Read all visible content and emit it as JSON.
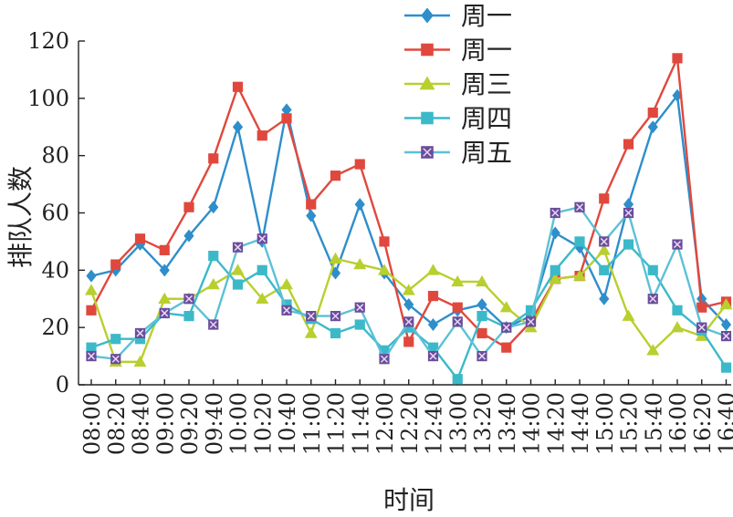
{
  "chart_data": {
    "type": "line",
    "title": "",
    "xlabel": "时间",
    "ylabel": "排队人数",
    "ylim": [
      0,
      120
    ],
    "yticks": [
      0,
      20,
      40,
      60,
      80,
      100,
      120
    ],
    "grid": false,
    "legend_position": "top-center",
    "categories": [
      "08:00",
      "08:20",
      "08:40",
      "09:00",
      "09:20",
      "09:40",
      "10:00",
      "10:20",
      "10:40",
      "11:00",
      "11:20",
      "11:40",
      "12:00",
      "12:20",
      "12:40",
      "13:00",
      "13:20",
      "13:40",
      "14:00",
      "14:20",
      "14:40",
      "15:00",
      "15:20",
      "15:40",
      "16:00",
      "16:20",
      "16:40"
    ],
    "series": [
      {
        "name": "周一",
        "color": "#2e8ecb",
        "marker": "diamond",
        "values": [
          38,
          40,
          49,
          40,
          52,
          62,
          90,
          50,
          96,
          59,
          39,
          63,
          39,
          28,
          21,
          26,
          28,
          20,
          24,
          53,
          48,
          30,
          63,
          90,
          101,
          30,
          21
        ]
      },
      {
        "name": "周一",
        "color": "#e0483d",
        "marker": "square",
        "values": [
          26,
          42,
          51,
          47,
          62,
          79,
          104,
          87,
          93,
          63,
          73,
          77,
          50,
          15,
          31,
          27,
          18,
          13,
          22,
          37,
          38,
          65,
          84,
          95,
          114,
          27,
          29
        ]
      },
      {
        "name": "周三",
        "color": "#b9cf2e",
        "marker": "triangle",
        "values": [
          33,
          8,
          8,
          30,
          30,
          35,
          40,
          30,
          35,
          18,
          44,
          42,
          40,
          33,
          40,
          36,
          36,
          27,
          20,
          37,
          38,
          47,
          24,
          12,
          20,
          17,
          28
        ]
      },
      {
        "name": "周四",
        "color": "#3cb9c9",
        "marker": "square",
        "values": [
          13,
          16,
          16,
          25,
          24,
          45,
          35,
          40,
          28,
          23,
          18,
          21,
          12,
          20,
          13,
          2,
          24,
          20,
          26,
          40,
          50,
          40,
          49,
          40,
          26,
          19,
          6
        ]
      },
      {
        "name": "周五",
        "color": "#6a4c9c",
        "marker": "square-x",
        "line_color": "#5cc1d6",
        "values": [
          10,
          9,
          18,
          25,
          30,
          21,
          48,
          51,
          26,
          24,
          24,
          27,
          9,
          22,
          10,
          22,
          10,
          20,
          22,
          60,
          62,
          50,
          60,
          30,
          49,
          20,
          17
        ]
      }
    ]
  }
}
